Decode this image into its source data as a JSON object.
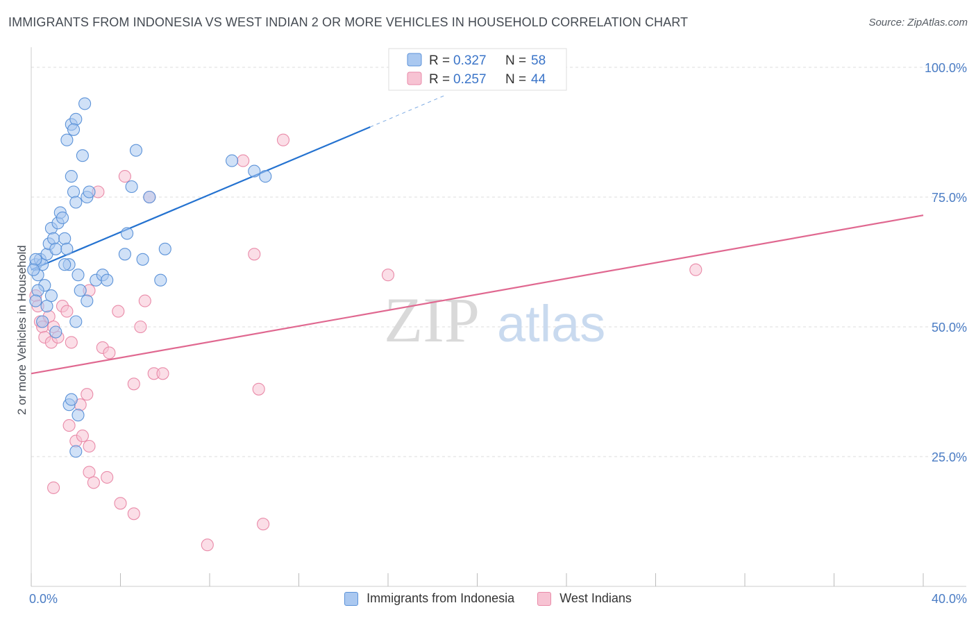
{
  "header": {
    "title": "IMMIGRANTS FROM INDONESIA VS WEST INDIAN 2 OR MORE VEHICLES IN HOUSEHOLD CORRELATION CHART",
    "source": "Source: ZipAtlas.com"
  },
  "watermark": {
    "zip": "ZIP",
    "atlas": "atlas"
  },
  "colors": {
    "blue_fill": "#aac8f0",
    "blue_stroke": "#5b92d8",
    "blue_line": "#2472d0",
    "pink_fill": "#f7c3d3",
    "pink_stroke": "#e98aa8",
    "pink_line": "#e06890",
    "tick_label": "#4a7cc4",
    "grid": "#dcdcdc"
  },
  "chart_data": {
    "type": "scatter",
    "title": "IMMIGRANTS FROM INDONESIA VS WEST INDIAN 2 OR MORE VEHICLES IN HOUSEHOLD CORRELATION CHART",
    "ylabel": "2 or more Vehicles in Household",
    "xlabel": "",
    "xlim": [
      0,
      40
    ],
    "ylim": [
      0,
      105
    ],
    "x_tick_labels": [
      "0.0%",
      "40.0%"
    ],
    "y_ticks": [
      25,
      50,
      75,
      100
    ],
    "y_tick_labels": [
      "25.0%",
      "50.0%",
      "75.0%",
      "100.0%"
    ],
    "legend": [
      {
        "r_label": "R = ",
        "r_value": "0.327",
        "n_label": "N = ",
        "n_value": "58"
      },
      {
        "r_label": "R = ",
        "r_value": "0.257",
        "n_label": "N = ",
        "n_value": "44"
      }
    ],
    "series": [
      {
        "name": "Immigrants from Indonesia",
        "color": "#5b92d8",
        "trend": {
          "x0": 0,
          "y0": 61.0,
          "x1": 15.2,
          "y1": 88.5,
          "dash_x1": 18.5,
          "dash_y1": 94.5
        },
        "points": [
          [
            0.2,
            62
          ],
          [
            0.3,
            60
          ],
          [
            0.4,
            63
          ],
          [
            0.5,
            62
          ],
          [
            0.6,
            58
          ],
          [
            0.7,
            64
          ],
          [
            0.8,
            66
          ],
          [
            0.9,
            69
          ],
          [
            1.0,
            67
          ],
          [
            1.1,
            65
          ],
          [
            1.2,
            70
          ],
          [
            1.3,
            72
          ],
          [
            1.4,
            71
          ],
          [
            1.5,
            67
          ],
          [
            1.6,
            65
          ],
          [
            1.7,
            62
          ],
          [
            1.9,
            76
          ],
          [
            1.8,
            79
          ],
          [
            1.8,
            89
          ],
          [
            1.6,
            86
          ],
          [
            2.0,
            74
          ],
          [
            2.3,
            83
          ],
          [
            2.4,
            93
          ],
          [
            2.5,
            75
          ],
          [
            2.6,
            76
          ],
          [
            2.0,
            90
          ],
          [
            1.9,
            88
          ],
          [
            0.3,
            57
          ],
          [
            0.5,
            51
          ],
          [
            0.7,
            54
          ],
          [
            0.9,
            56
          ],
          [
            1.1,
            49
          ],
          [
            0.2,
            55
          ],
          [
            1.5,
            62
          ],
          [
            2.1,
            60
          ],
          [
            2.2,
            57
          ],
          [
            2.5,
            55
          ],
          [
            2.9,
            59
          ],
          [
            3.2,
            60
          ],
          [
            3.4,
            59
          ],
          [
            2.0,
            51
          ],
          [
            4.2,
            64
          ],
          [
            4.3,
            68
          ],
          [
            4.5,
            77
          ],
          [
            4.7,
            84
          ],
          [
            5.0,
            63
          ],
          [
            5.3,
            75
          ],
          [
            5.8,
            59
          ],
          [
            6.0,
            65
          ],
          [
            9.0,
            82
          ],
          [
            10.0,
            80
          ],
          [
            10.5,
            79
          ],
          [
            1.7,
            35
          ],
          [
            1.8,
            36
          ],
          [
            2.0,
            26
          ],
          [
            2.1,
            33
          ],
          [
            0.2,
            63
          ],
          [
            0.1,
            61
          ]
        ]
      },
      {
        "name": "West Indians",
        "color": "#e98aa8",
        "trend": {
          "x0": 0,
          "y0": 41.0,
          "x1": 40,
          "y1": 71.5
        },
        "points": [
          [
            0.2,
            56
          ],
          [
            0.3,
            54
          ],
          [
            0.4,
            51
          ],
          [
            0.5,
            50
          ],
          [
            0.6,
            48
          ],
          [
            0.8,
            52
          ],
          [
            0.9,
            47
          ],
          [
            1.0,
            50
          ],
          [
            1.2,
            48
          ],
          [
            1.4,
            54
          ],
          [
            1.6,
            53
          ],
          [
            1.8,
            47
          ],
          [
            2.2,
            35
          ],
          [
            2.5,
            37
          ],
          [
            2.6,
            57
          ],
          [
            3.0,
            76
          ],
          [
            3.2,
            46
          ],
          [
            3.5,
            45
          ],
          [
            3.9,
            53
          ],
          [
            4.2,
            79
          ],
          [
            4.6,
            39
          ],
          [
            4.9,
            50
          ],
          [
            5.1,
            55
          ],
          [
            5.5,
            41
          ],
          [
            5.3,
            75
          ],
          [
            5.9,
            41
          ],
          [
            1.7,
            31
          ],
          [
            2.0,
            28
          ],
          [
            2.3,
            29
          ],
          [
            2.6,
            27
          ],
          [
            2.6,
            22
          ],
          [
            1.0,
            19
          ],
          [
            2.8,
            20
          ],
          [
            3.4,
            21
          ],
          [
            4.0,
            16
          ],
          [
            4.6,
            14
          ],
          [
            7.9,
            8
          ],
          [
            9.5,
            82
          ],
          [
            10.0,
            64
          ],
          [
            10.2,
            38
          ],
          [
            10.4,
            12
          ],
          [
            11.3,
            86
          ],
          [
            16.0,
            60
          ],
          [
            29.8,
            61
          ]
        ]
      }
    ]
  },
  "bottom_legend": {
    "series1": "Immigrants from Indonesia",
    "series2": "West Indians"
  }
}
